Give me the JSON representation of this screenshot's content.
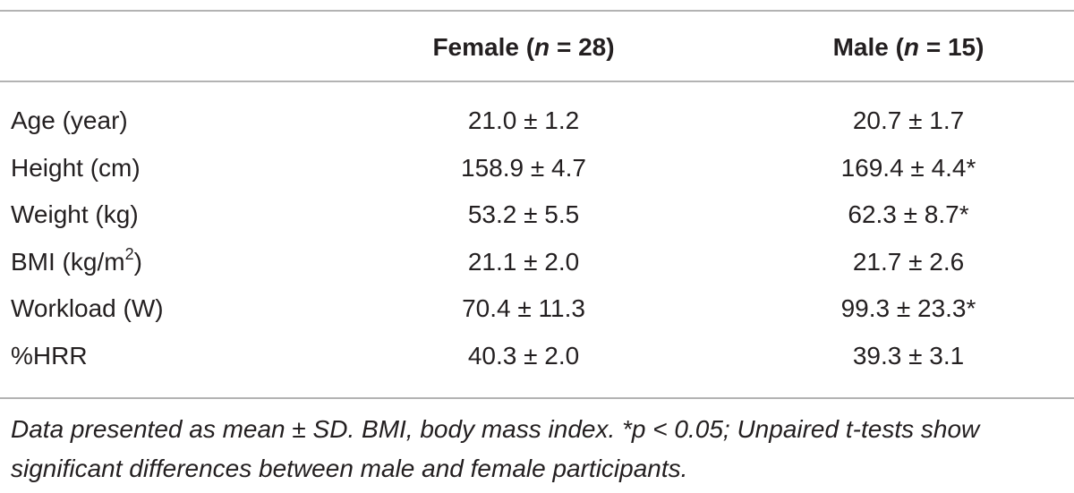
{
  "table": {
    "header": [
      {
        "text": "Female (",
        "italic": "n",
        "after": " = 28)"
      },
      {
        "text": "Male (",
        "italic": "n",
        "after": " = 15)"
      }
    ],
    "rows": [
      [
        {
          "text": "Age (year)"
        },
        "21.0 ± 1.2",
        "20.7 ± 1.7"
      ],
      [
        {
          "text": "Height (cm)"
        },
        "158.9 ± 4.7",
        "169.4 ± 4.4*"
      ],
      [
        {
          "text": "Weight (kg)"
        },
        "53.2 ± 5.5",
        "62.3 ± 8.7*"
      ],
      [
        {
          "text": "BMI (kg/m",
          "sup": "2",
          "after": ")"
        },
        "21.1 ± 2.0",
        "21.7 ± 2.6"
      ],
      [
        {
          "text": "Workload (W)"
        },
        "70.4 ± 11.3",
        "99.3 ± 23.3*"
      ],
      [
        {
          "text": "%HRR"
        },
        "40.3 ± 2.0",
        "39.3 ± 3.1"
      ]
    ],
    "footnote": "Data presented as mean ± SD. BMI, body mass index. *p < 0.05; Unpaired t-tests show significant differences between male and female participants."
  }
}
